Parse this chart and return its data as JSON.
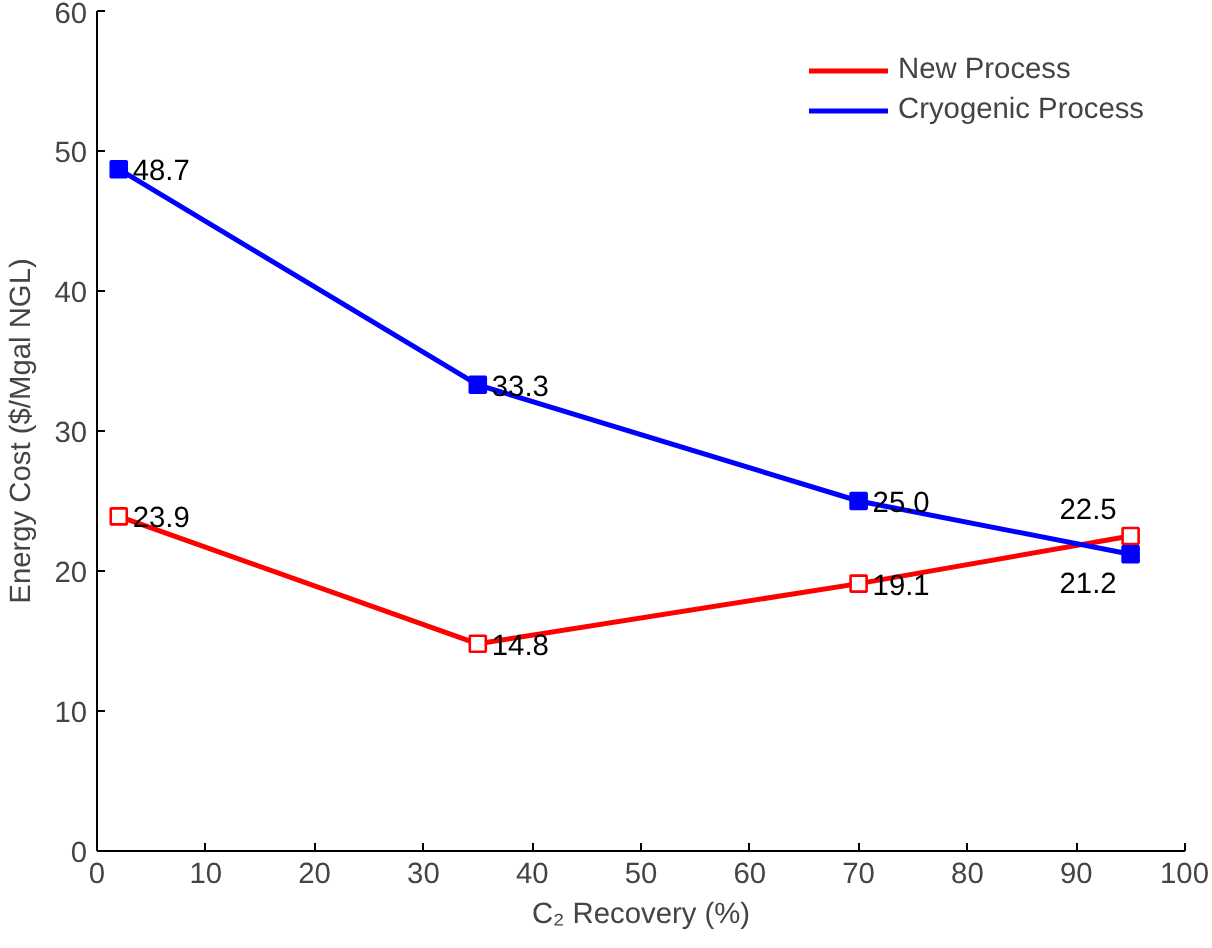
{
  "chart_data": {
    "type": "line",
    "xlabel": "C₂ Recovery (%)",
    "ylabel": "Energy Cost ($/Mgal NGL)",
    "x": [
      2,
      35,
      70,
      95
    ],
    "series": [
      {
        "name": "New Process",
        "color": "#ff0000",
        "values": [
          23.9,
          14.8,
          19.1,
          22.5
        ],
        "value_labels": [
          "23.9",
          "14.8",
          "19.1",
          "22.5"
        ]
      },
      {
        "name": "Cryogenic Process",
        "color": "#0000ff",
        "values": [
          48.7,
          33.3,
          25.0,
          21.2
        ],
        "value_labels": [
          "48.7",
          "33.3",
          "25.0",
          "21.2"
        ]
      }
    ],
    "xlim": [
      0,
      100
    ],
    "xticks": [
      0,
      10,
      20,
      30,
      40,
      50,
      60,
      70,
      80,
      90,
      100
    ],
    "ylim": [
      0,
      60
    ],
    "yticks": [
      0,
      10,
      20,
      30,
      40,
      50,
      60
    ],
    "grid": false,
    "legend": "top right",
    "marker": "square",
    "line_style": "solid"
  }
}
